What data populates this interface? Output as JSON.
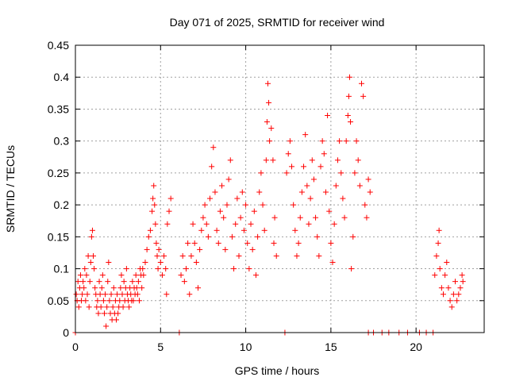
{
  "chart_data": {
    "type": "scatter",
    "title": "Day 071 of 2025, SRMTID for receiver wind",
    "xlabel": "GPS time / hours",
    "ylabel": "SRMTID / TECUs",
    "xlim": [
      0,
      24
    ],
    "ylim": [
      0,
      0.45
    ],
    "x_ticks": [
      0,
      5,
      10,
      15,
      20
    ],
    "y_ticks": [
      0,
      0.05,
      0.1,
      0.15,
      0.2,
      0.25,
      0.3,
      0.35,
      0.4,
      0.45
    ],
    "x_tick_labels": [
      "0",
      "5",
      "10",
      "15",
      "20"
    ],
    "y_tick_labels": [
      "0",
      "0.05",
      "0.1",
      "0.15",
      "0.2",
      "0.25",
      "0.3",
      "0.35",
      "0.4",
      "0.45"
    ],
    "grid": true,
    "marker": "+",
    "series": [
      {
        "name": "SRMTID",
        "color": "#ff0000",
        "points": [
          [
            0.0,
            0.0
          ],
          [
            0.05,
            0.06
          ],
          [
            0.1,
            0.05
          ],
          [
            0.15,
            0.08
          ],
          [
            0.2,
            0.04
          ],
          [
            0.25,
            0.07
          ],
          [
            0.3,
            0.09
          ],
          [
            0.35,
            0.05
          ],
          [
            0.4,
            0.06
          ],
          [
            0.45,
            0.08
          ],
          [
            0.5,
            0.07
          ],
          [
            0.55,
            0.1
          ],
          [
            0.6,
            0.05
          ],
          [
            0.65,
            0.09
          ],
          [
            0.7,
            0.06
          ],
          [
            0.75,
            0.12
          ],
          [
            0.8,
            0.04
          ],
          [
            0.85,
            0.08
          ],
          [
            0.9,
            0.11
          ],
          [
            0.95,
            0.15
          ],
          [
            1.0,
            0.16
          ],
          [
            1.05,
            0.12
          ],
          [
            1.1,
            0.1
          ],
          [
            1.15,
            0.07
          ],
          [
            1.2,
            0.06
          ],
          [
            1.25,
            0.04
          ],
          [
            1.3,
            0.05
          ],
          [
            1.35,
            0.03
          ],
          [
            1.4,
            0.08
          ],
          [
            1.45,
            0.06
          ],
          [
            1.5,
            0.04
          ],
          [
            1.55,
            0.07
          ],
          [
            1.6,
            0.09
          ],
          [
            1.65,
            0.05
          ],
          [
            1.7,
            0.03
          ],
          [
            1.75,
            0.06
          ],
          [
            1.8,
            0.01
          ],
          [
            1.85,
            0.04
          ],
          [
            1.9,
            0.08
          ],
          [
            1.95,
            0.11
          ],
          [
            2.0,
            0.05
          ],
          [
            2.05,
            0.03
          ],
          [
            2.1,
            0.06
          ],
          [
            2.15,
            0.02
          ],
          [
            2.2,
            0.04
          ],
          [
            2.25,
            0.07
          ],
          [
            2.3,
            0.03
          ],
          [
            2.35,
            0.05
          ],
          [
            2.4,
            0.02
          ],
          [
            2.45,
            0.06
          ],
          [
            2.5,
            0.03
          ],
          [
            2.55,
            0.04
          ],
          [
            2.6,
            0.05
          ],
          [
            2.65,
            0.07
          ],
          [
            2.7,
            0.09
          ],
          [
            2.75,
            0.06
          ],
          [
            2.8,
            0.04
          ],
          [
            2.85,
            0.08
          ],
          [
            2.9,
            0.05
          ],
          [
            2.95,
            0.07
          ],
          [
            3.0,
            0.1
          ],
          [
            3.05,
            0.06
          ],
          [
            3.1,
            0.05
          ],
          [
            3.15,
            0.04
          ],
          [
            3.2,
            0.07
          ],
          [
            3.25,
            0.06
          ],
          [
            3.3,
            0.05
          ],
          [
            3.35,
            0.08
          ],
          [
            3.4,
            0.05
          ],
          [
            3.45,
            0.07
          ],
          [
            3.5,
            0.06
          ],
          [
            3.55,
            0.09
          ],
          [
            3.6,
            0.07
          ],
          [
            3.65,
            0.06
          ],
          [
            3.7,
            0.08
          ],
          [
            3.75,
            0.05
          ],
          [
            3.8,
            0.1
          ],
          [
            3.85,
            0.09
          ],
          [
            3.9,
            0.07
          ],
          [
            3.95,
            0.1
          ],
          [
            4.0,
            0.09
          ],
          [
            4.1,
            0.11
          ],
          [
            4.2,
            0.13
          ],
          [
            4.3,
            0.15
          ],
          [
            4.4,
            0.16
          ],
          [
            4.5,
            0.19
          ],
          [
            4.55,
            0.21
          ],
          [
            4.6,
            0.23
          ],
          [
            4.65,
            0.2
          ],
          [
            4.7,
            0.17
          ],
          [
            4.75,
            0.14
          ],
          [
            4.8,
            0.12
          ],
          [
            4.85,
            0.1
          ],
          [
            4.9,
            0.13
          ],
          [
            5.0,
            0.11
          ],
          [
            5.1,
            0.09
          ],
          [
            5.2,
            0.12
          ],
          [
            5.3,
            0.1
          ],
          [
            5.35,
            0.06
          ],
          [
            5.4,
            0.17
          ],
          [
            5.5,
            0.19
          ],
          [
            5.6,
            0.21
          ],
          [
            6.1,
            0.0
          ],
          [
            6.2,
            0.09
          ],
          [
            6.3,
            0.12
          ],
          [
            6.4,
            0.08
          ],
          [
            6.5,
            0.1
          ],
          [
            6.6,
            0.14
          ],
          [
            6.7,
            0.06
          ],
          [
            6.8,
            0.12
          ],
          [
            6.9,
            0.17
          ],
          [
            7.0,
            0.14
          ],
          [
            7.1,
            0.11
          ],
          [
            7.2,
            0.07
          ],
          [
            7.3,
            0.13
          ],
          [
            7.4,
            0.16
          ],
          [
            7.5,
            0.18
          ],
          [
            7.6,
            0.2
          ],
          [
            7.7,
            0.17
          ],
          [
            7.8,
            0.15
          ],
          [
            7.9,
            0.21
          ],
          [
            8.0,
            0.26
          ],
          [
            8.1,
            0.29
          ],
          [
            8.2,
            0.22
          ],
          [
            8.3,
            0.16
          ],
          [
            8.4,
            0.14
          ],
          [
            8.5,
            0.19
          ],
          [
            8.6,
            0.23
          ],
          [
            8.7,
            0.18
          ],
          [
            8.8,
            0.13
          ],
          [
            8.9,
            0.2
          ],
          [
            9.0,
            0.24
          ],
          [
            9.1,
            0.27
          ],
          [
            9.2,
            0.15
          ],
          [
            9.3,
            0.1
          ],
          [
            9.4,
            0.17
          ],
          [
            9.5,
            0.21
          ],
          [
            9.6,
            0.12
          ],
          [
            9.7,
            0.18
          ],
          [
            9.8,
            0.22
          ],
          [
            9.9,
            0.16
          ],
          [
            10.0,
            0.2
          ],
          [
            10.1,
            0.14
          ],
          [
            10.2,
            0.1
          ],
          [
            10.3,
            0.17
          ],
          [
            10.4,
            0.13
          ],
          [
            10.5,
            0.19
          ],
          [
            10.6,
            0.09
          ],
          [
            10.7,
            0.15
          ],
          [
            10.8,
            0.22
          ],
          [
            10.9,
            0.25
          ],
          [
            11.0,
            0.2
          ],
          [
            11.1,
            0.16
          ],
          [
            11.2,
            0.27
          ],
          [
            11.25,
            0.33
          ],
          [
            11.3,
            0.39
          ],
          [
            11.35,
            0.36
          ],
          [
            11.4,
            0.3
          ],
          [
            11.5,
            0.32
          ],
          [
            11.6,
            0.27
          ],
          [
            11.65,
            0.14
          ],
          [
            11.7,
            0.18
          ],
          [
            11.8,
            0.12
          ],
          [
            12.3,
            0.0
          ],
          [
            12.4,
            0.25
          ],
          [
            12.5,
            0.28
          ],
          [
            12.6,
            0.3
          ],
          [
            12.7,
            0.26
          ],
          [
            12.8,
            0.2
          ],
          [
            12.9,
            0.16
          ],
          [
            13.0,
            0.12
          ],
          [
            13.1,
            0.14
          ],
          [
            13.2,
            0.18
          ],
          [
            13.3,
            0.22
          ],
          [
            13.4,
            0.26
          ],
          [
            13.5,
            0.31
          ],
          [
            13.6,
            0.23
          ],
          [
            13.7,
            0.17
          ],
          [
            13.8,
            0.21
          ],
          [
            13.9,
            0.27
          ],
          [
            14.0,
            0.24
          ],
          [
            14.1,
            0.18
          ],
          [
            14.2,
            0.15
          ],
          [
            14.3,
            0.12
          ],
          [
            14.4,
            0.26
          ],
          [
            14.5,
            0.3
          ],
          [
            14.6,
            0.28
          ],
          [
            14.7,
            0.22
          ],
          [
            14.8,
            0.34
          ],
          [
            14.9,
            0.19
          ],
          [
            15.0,
            0.14
          ],
          [
            15.1,
            0.11
          ],
          [
            15.2,
            0.17
          ],
          [
            15.3,
            0.23
          ],
          [
            15.4,
            0.27
          ],
          [
            15.5,
            0.3
          ],
          [
            15.6,
            0.25
          ],
          [
            15.7,
            0.21
          ],
          [
            15.8,
            0.18
          ],
          [
            15.9,
            0.3
          ],
          [
            16.0,
            0.34
          ],
          [
            16.05,
            0.37
          ],
          [
            16.1,
            0.4
          ],
          [
            16.15,
            0.33
          ],
          [
            16.2,
            0.1
          ],
          [
            16.3,
            0.15
          ],
          [
            16.4,
            0.25
          ],
          [
            16.5,
            0.3
          ],
          [
            16.6,
            0.27
          ],
          [
            16.7,
            0.23
          ],
          [
            16.8,
            0.39
          ],
          [
            16.9,
            0.37
          ],
          [
            17.0,
            0.2
          ],
          [
            17.1,
            0.18
          ],
          [
            17.2,
            0.24
          ],
          [
            17.3,
            0.22
          ],
          [
            17.2,
            0.0
          ],
          [
            17.5,
            0.0
          ],
          [
            18.0,
            0.0
          ],
          [
            18.4,
            0.0
          ],
          [
            19.0,
            0.0
          ],
          [
            19.5,
            0.0
          ],
          [
            20.2,
            0.0
          ],
          [
            20.6,
            0.0
          ],
          [
            21.0,
            0.0
          ],
          [
            21.1,
            0.09
          ],
          [
            21.2,
            0.12
          ],
          [
            21.3,
            0.14
          ],
          [
            21.35,
            0.16
          ],
          [
            21.4,
            0.1
          ],
          [
            21.5,
            0.07
          ],
          [
            21.6,
            0.06
          ],
          [
            21.7,
            0.09
          ],
          [
            21.8,
            0.11
          ],
          [
            21.9,
            0.07
          ],
          [
            22.0,
            0.05
          ],
          [
            22.1,
            0.04
          ],
          [
            22.2,
            0.06
          ],
          [
            22.3,
            0.08
          ],
          [
            22.4,
            0.05
          ],
          [
            22.5,
            0.06
          ],
          [
            22.6,
            0.07
          ],
          [
            22.7,
            0.09
          ],
          [
            22.75,
            0.08
          ]
        ]
      }
    ]
  }
}
